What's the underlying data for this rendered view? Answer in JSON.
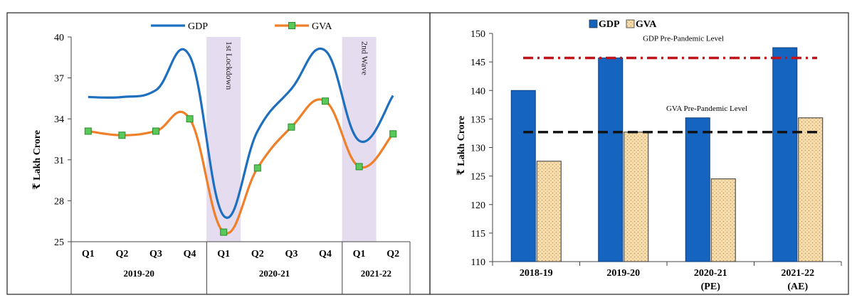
{
  "header": {
    "visible_text": ""
  },
  "chart_data": [
    {
      "type": "line",
      "ylabel": "₹ Lakh Crore",
      "ylim": [
        25,
        40
      ],
      "yticks": [
        25,
        28,
        31,
        34,
        37,
        40
      ],
      "categories": [
        "Q1",
        "Q2",
        "Q3",
        "Q4",
        "Q1",
        "Q2",
        "Q3",
        "Q4",
        "Q1",
        "Q2"
      ],
      "groups": [
        {
          "label": "2019-20",
          "count": 4
        },
        {
          "label": "2020-21",
          "count": 4
        },
        {
          "label": "2021-22",
          "count": 2
        }
      ],
      "series": [
        {
          "name": "GDP",
          "color": "#1f6fbf",
          "values": [
            35.6,
            35.6,
            36.1,
            38.6,
            26.9,
            33.1,
            36.2,
            39.0,
            32.4,
            35.7
          ]
        },
        {
          "name": "GVA",
          "color": "#f07f2a",
          "marker": "square",
          "marker_color": "#5bc85b",
          "values": [
            33.1,
            32.8,
            33.1,
            34.0,
            25.7,
            30.4,
            33.4,
            35.3,
            30.5,
            32.9
          ]
        }
      ],
      "shaded_regions": [
        {
          "index": 4,
          "label": "1st Lockdown",
          "color": "#e6dcf0"
        },
        {
          "index": 8,
          "label": "2nd Wave",
          "color": "#e6dcf0"
        }
      ],
      "legend": "top",
      "grid": false
    },
    {
      "type": "bar",
      "ylabel": "₹ Lakh Crore",
      "ylim": [
        110,
        150
      ],
      "yticks": [
        110,
        115,
        120,
        125,
        130,
        135,
        140,
        145,
        150
      ],
      "categories": [
        {
          "line1": "2018-19",
          "line2": ""
        },
        {
          "line1": "2019-20",
          "line2": ""
        },
        {
          "line1": "2020-21",
          "line2": "(PE)"
        },
        {
          "line1": "2021-22",
          "line2": "(AE)"
        }
      ],
      "series": [
        {
          "name": "GDP",
          "color": "#1565c0",
          "values": [
            140.0,
            145.7,
            135.2,
            147.5
          ]
        },
        {
          "name": "GVA",
          "color": "#f6deb0",
          "pattern": "dotted",
          "values": [
            127.6,
            132.7,
            124.5,
            135.2
          ]
        }
      ],
      "reference_lines": [
        {
          "label": "GDP Pre-Pandemic Level",
          "value": 145.7,
          "color": "#c0141a"
        },
        {
          "label": "GVA Pre-Pandemic Level",
          "value": 132.7,
          "color": "#111111"
        }
      ],
      "legend": "top-left",
      "grid": false
    }
  ]
}
